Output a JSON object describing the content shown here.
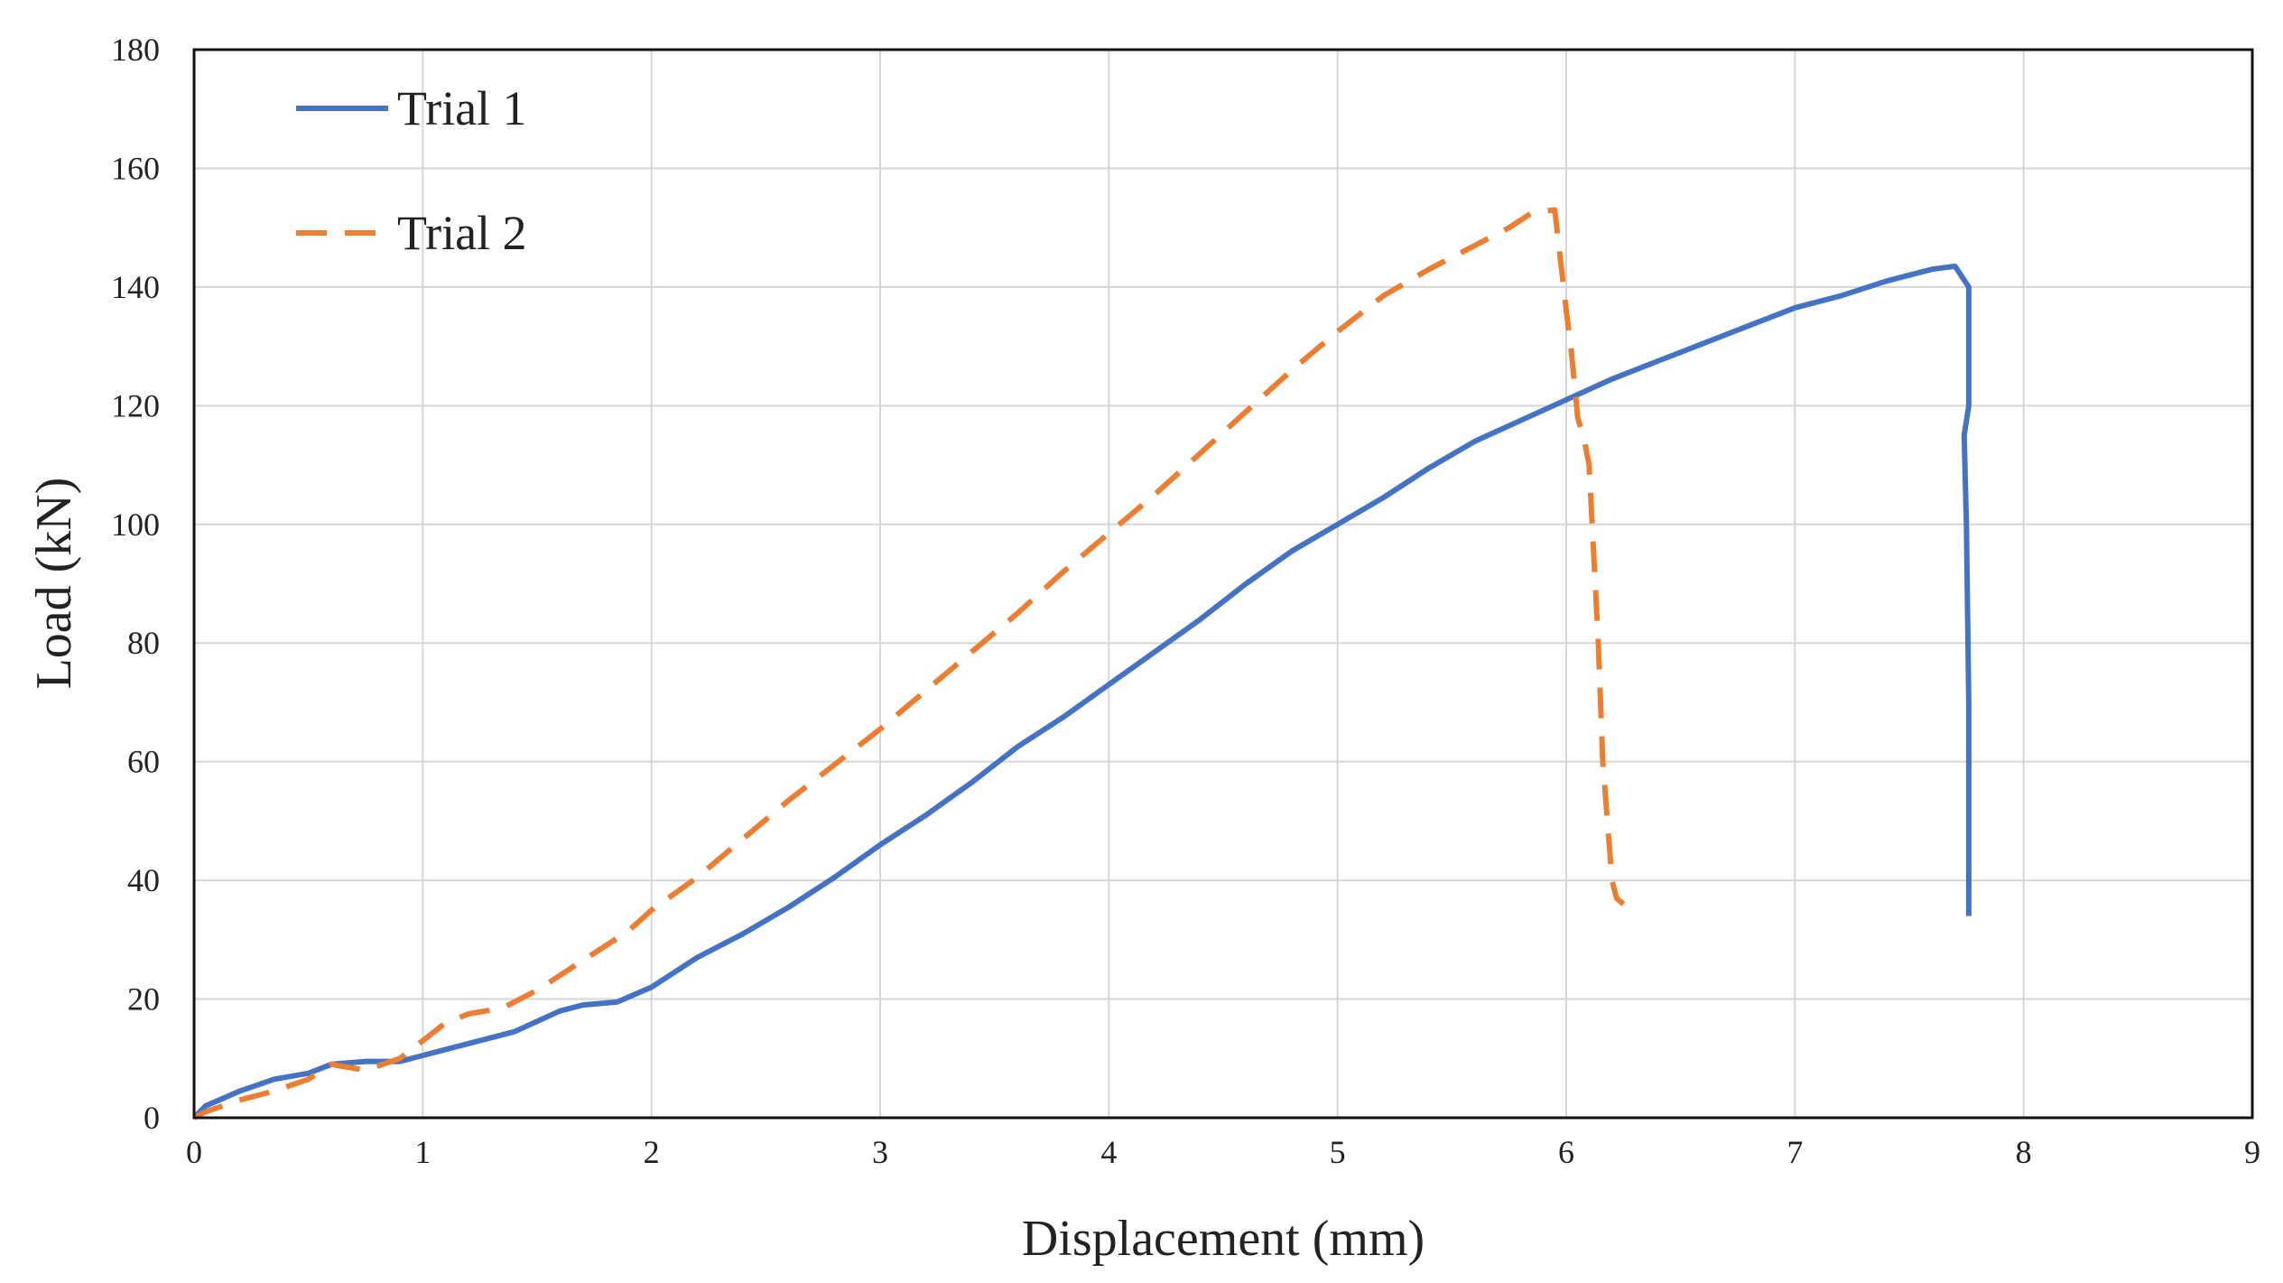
{
  "chart_data": {
    "type": "line",
    "title": "",
    "xlabel": "Displacement (mm)",
    "ylabel": "Load (kN)",
    "xlim": [
      0,
      9
    ],
    "ylim": [
      0,
      180
    ],
    "xticks": [
      0,
      1,
      2,
      3,
      4,
      5,
      6,
      7,
      8,
      9
    ],
    "yticks": [
      0,
      20,
      40,
      60,
      80,
      100,
      120,
      140,
      160,
      180
    ],
    "grid": true,
    "legend": "top-left",
    "series": [
      {
        "name": "Trial 1",
        "color": "#4472c4",
        "dash": "solid",
        "x": [
          0,
          0.05,
          0.2,
          0.35,
          0.5,
          0.6,
          0.75,
          0.9,
          1.0,
          1.2,
          1.4,
          1.6,
          1.7,
          1.85,
          2.0,
          2.2,
          2.4,
          2.6,
          2.8,
          3.0,
          3.2,
          3.4,
          3.6,
          3.8,
          4.0,
          4.2,
          4.4,
          4.6,
          4.8,
          5.0,
          5.2,
          5.4,
          5.6,
          5.8,
          6.0,
          6.2,
          6.4,
          6.6,
          6.8,
          7.0,
          7.2,
          7.4,
          7.6,
          7.7,
          7.76,
          7.76,
          7.74,
          7.75,
          7.76,
          7.76
        ],
        "y": [
          0,
          2,
          4.5,
          6.5,
          7.5,
          9,
          9.5,
          9.5,
          10.5,
          12.5,
          14.5,
          18,
          19,
          19.5,
          22,
          27,
          31,
          35.5,
          40.5,
          46,
          51,
          56.5,
          62.5,
          67.5,
          73,
          78.5,
          84,
          90,
          95.5,
          100,
          104.5,
          109.5,
          114,
          117.5,
          121,
          124.5,
          127.5,
          130.5,
          133.5,
          136.5,
          138.5,
          141,
          143,
          143.5,
          140,
          120,
          115,
          100,
          70,
          34
        ]
      },
      {
        "name": "Trial 2",
        "color": "#ed7d31",
        "dash": "dashed",
        "x": [
          0,
          0.05,
          0.2,
          0.35,
          0.5,
          0.6,
          0.75,
          0.9,
          1.0,
          1.1,
          1.2,
          1.35,
          1.5,
          1.7,
          1.9,
          2.0,
          2.2,
          2.4,
          2.6,
          2.8,
          3.0,
          3.2,
          3.4,
          3.6,
          3.8,
          4.0,
          4.2,
          4.4,
          4.6,
          4.8,
          5.0,
          5.2,
          5.4,
          5.6,
          5.75,
          5.85,
          5.95,
          6.0,
          6.02,
          6.05,
          6.08,
          6.1,
          6.14,
          6.15,
          6.16,
          6.18,
          6.2,
          6.22,
          6.25
        ],
        "y": [
          0,
          1,
          3,
          4.5,
          6.5,
          9,
          8,
          10,
          13,
          16,
          17.5,
          18.5,
          21.5,
          26.5,
          31.5,
          35,
          40.5,
          47,
          53.5,
          59.5,
          65.5,
          72,
          78.5,
          85,
          92,
          98.5,
          105,
          112,
          119,
          126,
          132.5,
          138.5,
          143,
          147,
          150,
          152.5,
          153,
          136,
          130,
          118,
          114,
          110,
          80,
          70,
          60,
          50,
          40,
          37,
          36
        ]
      }
    ]
  }
}
